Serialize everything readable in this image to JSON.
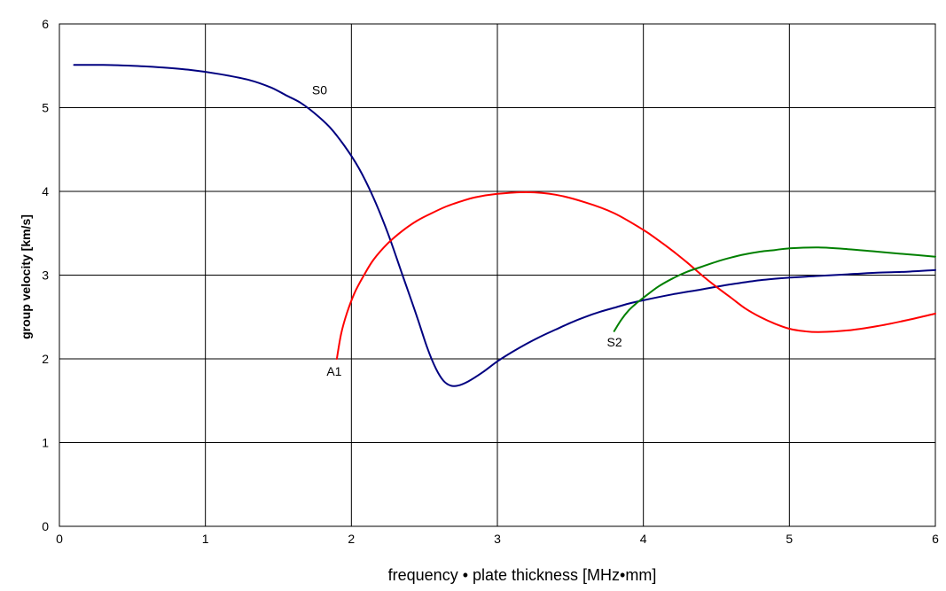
{
  "chart_data": {
    "type": "line",
    "title": "",
    "xlabel": "frequency • plate thickness [MHz•mm]",
    "ylabel": "group velocity [km/s]",
    "xlim": [
      0,
      6
    ],
    "ylim": [
      0,
      6
    ],
    "x_ticks": [
      "0",
      "1",
      "2",
      "3",
      "4",
      "5",
      "6"
    ],
    "y_ticks": [
      "0",
      "1",
      "2",
      "3",
      "4",
      "5",
      "6"
    ],
    "grid": true,
    "legend": "none",
    "series": [
      {
        "name": "S0",
        "color": "#000080",
        "points": [
          [
            0.1,
            5.51
          ],
          [
            0.3,
            5.51
          ],
          [
            0.5,
            5.5
          ],
          [
            0.7,
            5.48
          ],
          [
            0.9,
            5.45
          ],
          [
            1.1,
            5.4
          ],
          [
            1.3,
            5.33
          ],
          [
            1.45,
            5.24
          ],
          [
            1.55,
            5.15
          ],
          [
            1.65,
            5.06
          ],
          [
            1.75,
            4.93
          ],
          [
            1.85,
            4.77
          ],
          [
            1.95,
            4.55
          ],
          [
            2.05,
            4.28
          ],
          [
            2.15,
            3.93
          ],
          [
            2.25,
            3.5
          ],
          [
            2.35,
            3.0
          ],
          [
            2.45,
            2.5
          ],
          [
            2.52,
            2.13
          ],
          [
            2.58,
            1.88
          ],
          [
            2.63,
            1.74
          ],
          [
            2.68,
            1.68
          ],
          [
            2.73,
            1.68
          ],
          [
            2.8,
            1.73
          ],
          [
            2.9,
            1.84
          ],
          [
            3.0,
            1.97
          ],
          [
            3.1,
            2.08
          ],
          [
            3.2,
            2.18
          ],
          [
            3.3,
            2.27
          ],
          [
            3.4,
            2.35
          ],
          [
            3.5,
            2.43
          ],
          [
            3.6,
            2.5
          ],
          [
            3.7,
            2.56
          ],
          [
            3.8,
            2.61
          ],
          [
            3.9,
            2.66
          ],
          [
            4.0,
            2.7
          ],
          [
            4.2,
            2.77
          ],
          [
            4.4,
            2.83
          ],
          [
            4.6,
            2.89
          ],
          [
            4.8,
            2.94
          ],
          [
            5.0,
            2.97
          ],
          [
            5.2,
            2.99
          ],
          [
            5.4,
            3.01
          ],
          [
            5.6,
            3.03
          ],
          [
            5.8,
            3.04
          ],
          [
            6.0,
            3.06
          ]
        ]
      },
      {
        "name": "A1",
        "color": "#ff0000",
        "points": [
          [
            1.9,
            2.0
          ],
          [
            1.93,
            2.3
          ],
          [
            1.97,
            2.55
          ],
          [
            2.02,
            2.78
          ],
          [
            2.08,
            2.98
          ],
          [
            2.15,
            3.18
          ],
          [
            2.25,
            3.38
          ],
          [
            2.35,
            3.53
          ],
          [
            2.45,
            3.65
          ],
          [
            2.55,
            3.74
          ],
          [
            2.65,
            3.82
          ],
          [
            2.75,
            3.88
          ],
          [
            2.85,
            3.93
          ],
          [
            3.0,
            3.97
          ],
          [
            3.2,
            3.99
          ],
          [
            3.4,
            3.96
          ],
          [
            3.6,
            3.87
          ],
          [
            3.8,
            3.74
          ],
          [
            4.0,
            3.54
          ],
          [
            4.1,
            3.42
          ],
          [
            4.2,
            3.29
          ],
          [
            4.3,
            3.15
          ],
          [
            4.4,
            3.0
          ],
          [
            4.5,
            2.86
          ],
          [
            4.6,
            2.73
          ],
          [
            4.7,
            2.6
          ],
          [
            4.8,
            2.5
          ],
          [
            4.9,
            2.42
          ],
          [
            5.0,
            2.36
          ],
          [
            5.1,
            2.33
          ],
          [
            5.2,
            2.32
          ],
          [
            5.4,
            2.34
          ],
          [
            5.6,
            2.39
          ],
          [
            5.8,
            2.46
          ],
          [
            6.0,
            2.54
          ]
        ]
      },
      {
        "name": "S2",
        "color": "#008000",
        "points": [
          [
            3.8,
            2.33
          ],
          [
            3.85,
            2.47
          ],
          [
            3.9,
            2.58
          ],
          [
            3.95,
            2.66
          ],
          [
            4.0,
            2.73
          ],
          [
            4.1,
            2.86
          ],
          [
            4.2,
            2.96
          ],
          [
            4.3,
            3.04
          ],
          [
            4.4,
            3.1
          ],
          [
            4.5,
            3.16
          ],
          [
            4.6,
            3.21
          ],
          [
            4.7,
            3.25
          ],
          [
            4.8,
            3.28
          ],
          [
            4.9,
            3.3
          ],
          [
            5.0,
            3.32
          ],
          [
            5.2,
            3.33
          ],
          [
            5.4,
            3.31
          ],
          [
            5.6,
            3.28
          ],
          [
            5.8,
            3.25
          ],
          [
            6.0,
            3.22
          ]
        ]
      }
    ],
    "annotations": [
      {
        "text": "S0",
        "x": 1.73,
        "y": 5.16
      },
      {
        "text": "A1",
        "x": 1.83,
        "y": 1.8
      },
      {
        "text": "S2",
        "x": 3.75,
        "y": 2.15
      }
    ]
  }
}
